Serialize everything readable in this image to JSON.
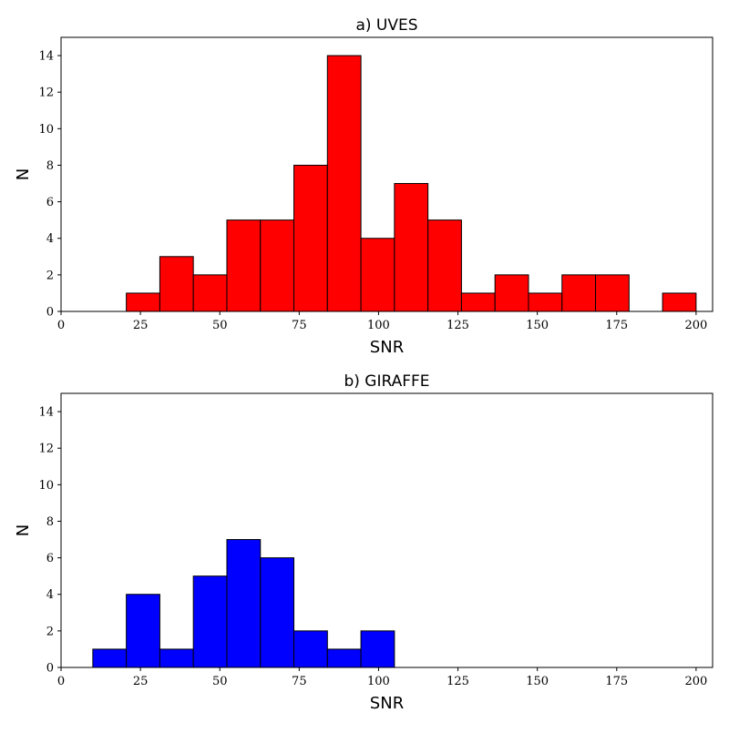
{
  "chart_data": [
    {
      "type": "bar",
      "title": "a) UVES",
      "xlabel": "SNR",
      "ylabel": "N",
      "bin_edges_range": [
        10,
        200
      ],
      "bins": 18,
      "counts": [
        0,
        1,
        3,
        2,
        5,
        5,
        8,
        14,
        4,
        7,
        5,
        1,
        2,
        1,
        2,
        2,
        0,
        1
      ],
      "xlim": [
        0,
        205.2
      ],
      "ylim": [
        0,
        15
      ],
      "xticks": [
        "0",
        "25",
        "50",
        "75",
        "100",
        "125",
        "150",
        "175",
        "200"
      ],
      "yticks": [
        "0",
        "2",
        "4",
        "6",
        "8",
        "10",
        "12",
        "14"
      ],
      "color": "#ff0000",
      "grid": false
    },
    {
      "type": "bar",
      "title": "b) GIRAFFE",
      "xlabel": "SNR",
      "ylabel": "N",
      "bin_edges_range": [
        10,
        200
      ],
      "bins": 18,
      "counts": [
        1,
        4,
        1,
        5,
        7,
        6,
        2,
        1,
        2,
        0,
        0,
        0,
        0,
        0,
        0,
        0,
        0,
        0
      ],
      "xlim": [
        0,
        205.2
      ],
      "ylim": [
        0,
        15
      ],
      "xticks": [
        "0",
        "25",
        "50",
        "75",
        "100",
        "125",
        "150",
        "175",
        "200"
      ],
      "yticks": [
        "0",
        "2",
        "4",
        "6",
        "8",
        "10",
        "12",
        "14"
      ],
      "color": "#0000ff",
      "grid": false
    }
  ]
}
